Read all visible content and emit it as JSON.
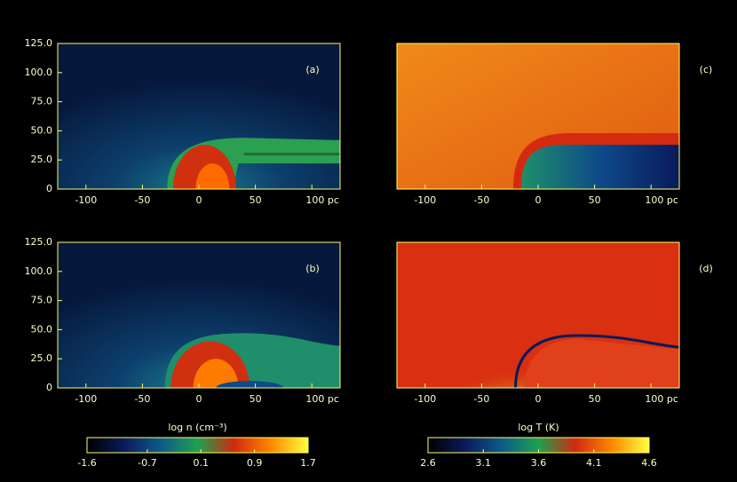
{
  "chart_data": [
    {
      "type": "heatmap",
      "label": "(a)",
      "xlim": [
        -125,
        125
      ],
      "ylim": [
        0,
        125
      ],
      "xticks": [
        -100,
        -50,
        0,
        50,
        {
          "value": 100,
          "label": "100 pc"
        }
      ],
      "yticks": [
        0,
        {
          "value": 25,
          "label": "25.0"
        },
        {
          "value": 50,
          "label": "50.0"
        },
        {
          "value": 75,
          "label": "75.0"
        },
        {
          "value": 100,
          "label": "100.0"
        },
        {
          "value": 125,
          "label": "125.0"
        }
      ]
    },
    {
      "type": "heatmap",
      "label": "(b)",
      "xlim": [
        -125,
        125
      ],
      "ylim": [
        0,
        125
      ],
      "xticks": [
        -100,
        -50,
        0,
        50,
        {
          "value": 100,
          "label": "100 pc"
        }
      ],
      "yticks": [
        0,
        {
          "value": 25,
          "label": "25.0"
        },
        {
          "value": 50,
          "label": "50.0"
        },
        {
          "value": 75,
          "label": "75.0"
        },
        {
          "value": 100,
          "label": "100.0"
        },
        {
          "value": 125,
          "label": "125.0"
        }
      ],
      "colorbar": {
        "label": "log n (cm⁻³)",
        "lim": [
          -1.6,
          1.7
        ],
        "ticks": [
          -1.6,
          -0.7,
          0.1,
          0.9,
          1.7
        ],
        "colors": [
          "#000000",
          "#0a1a5a",
          "#0e5a8a",
          "#1ea050",
          "#d02a10",
          "#ff8800",
          "#ffff40"
        ]
      }
    },
    {
      "type": "heatmap",
      "label": "(c)",
      "xlim": [
        -125,
        125
      ],
      "ylim": [
        0,
        125
      ],
      "xticks": [
        -100,
        -50,
        0,
        50,
        {
          "value": 100,
          "label": "100 pc"
        }
      ],
      "yticks": []
    },
    {
      "type": "heatmap",
      "label": "(d)",
      "xlim": [
        -125,
        125
      ],
      "ylim": [
        0,
        125
      ],
      "xticks": [
        -100,
        -50,
        0,
        50,
        {
          "value": 100,
          "label": "100 pc"
        }
      ],
      "yticks": [],
      "colorbar": {
        "label": "log T (K)",
        "lim": [
          2.6,
          4.6
        ],
        "ticks": [
          2.6,
          3.1,
          3.6,
          4.1,
          4.6
        ],
        "colors": [
          "#000000",
          "#0a1a5a",
          "#0e5a8a",
          "#1ea050",
          "#d02a10",
          "#ff8800",
          "#ffff40"
        ]
      }
    }
  ]
}
